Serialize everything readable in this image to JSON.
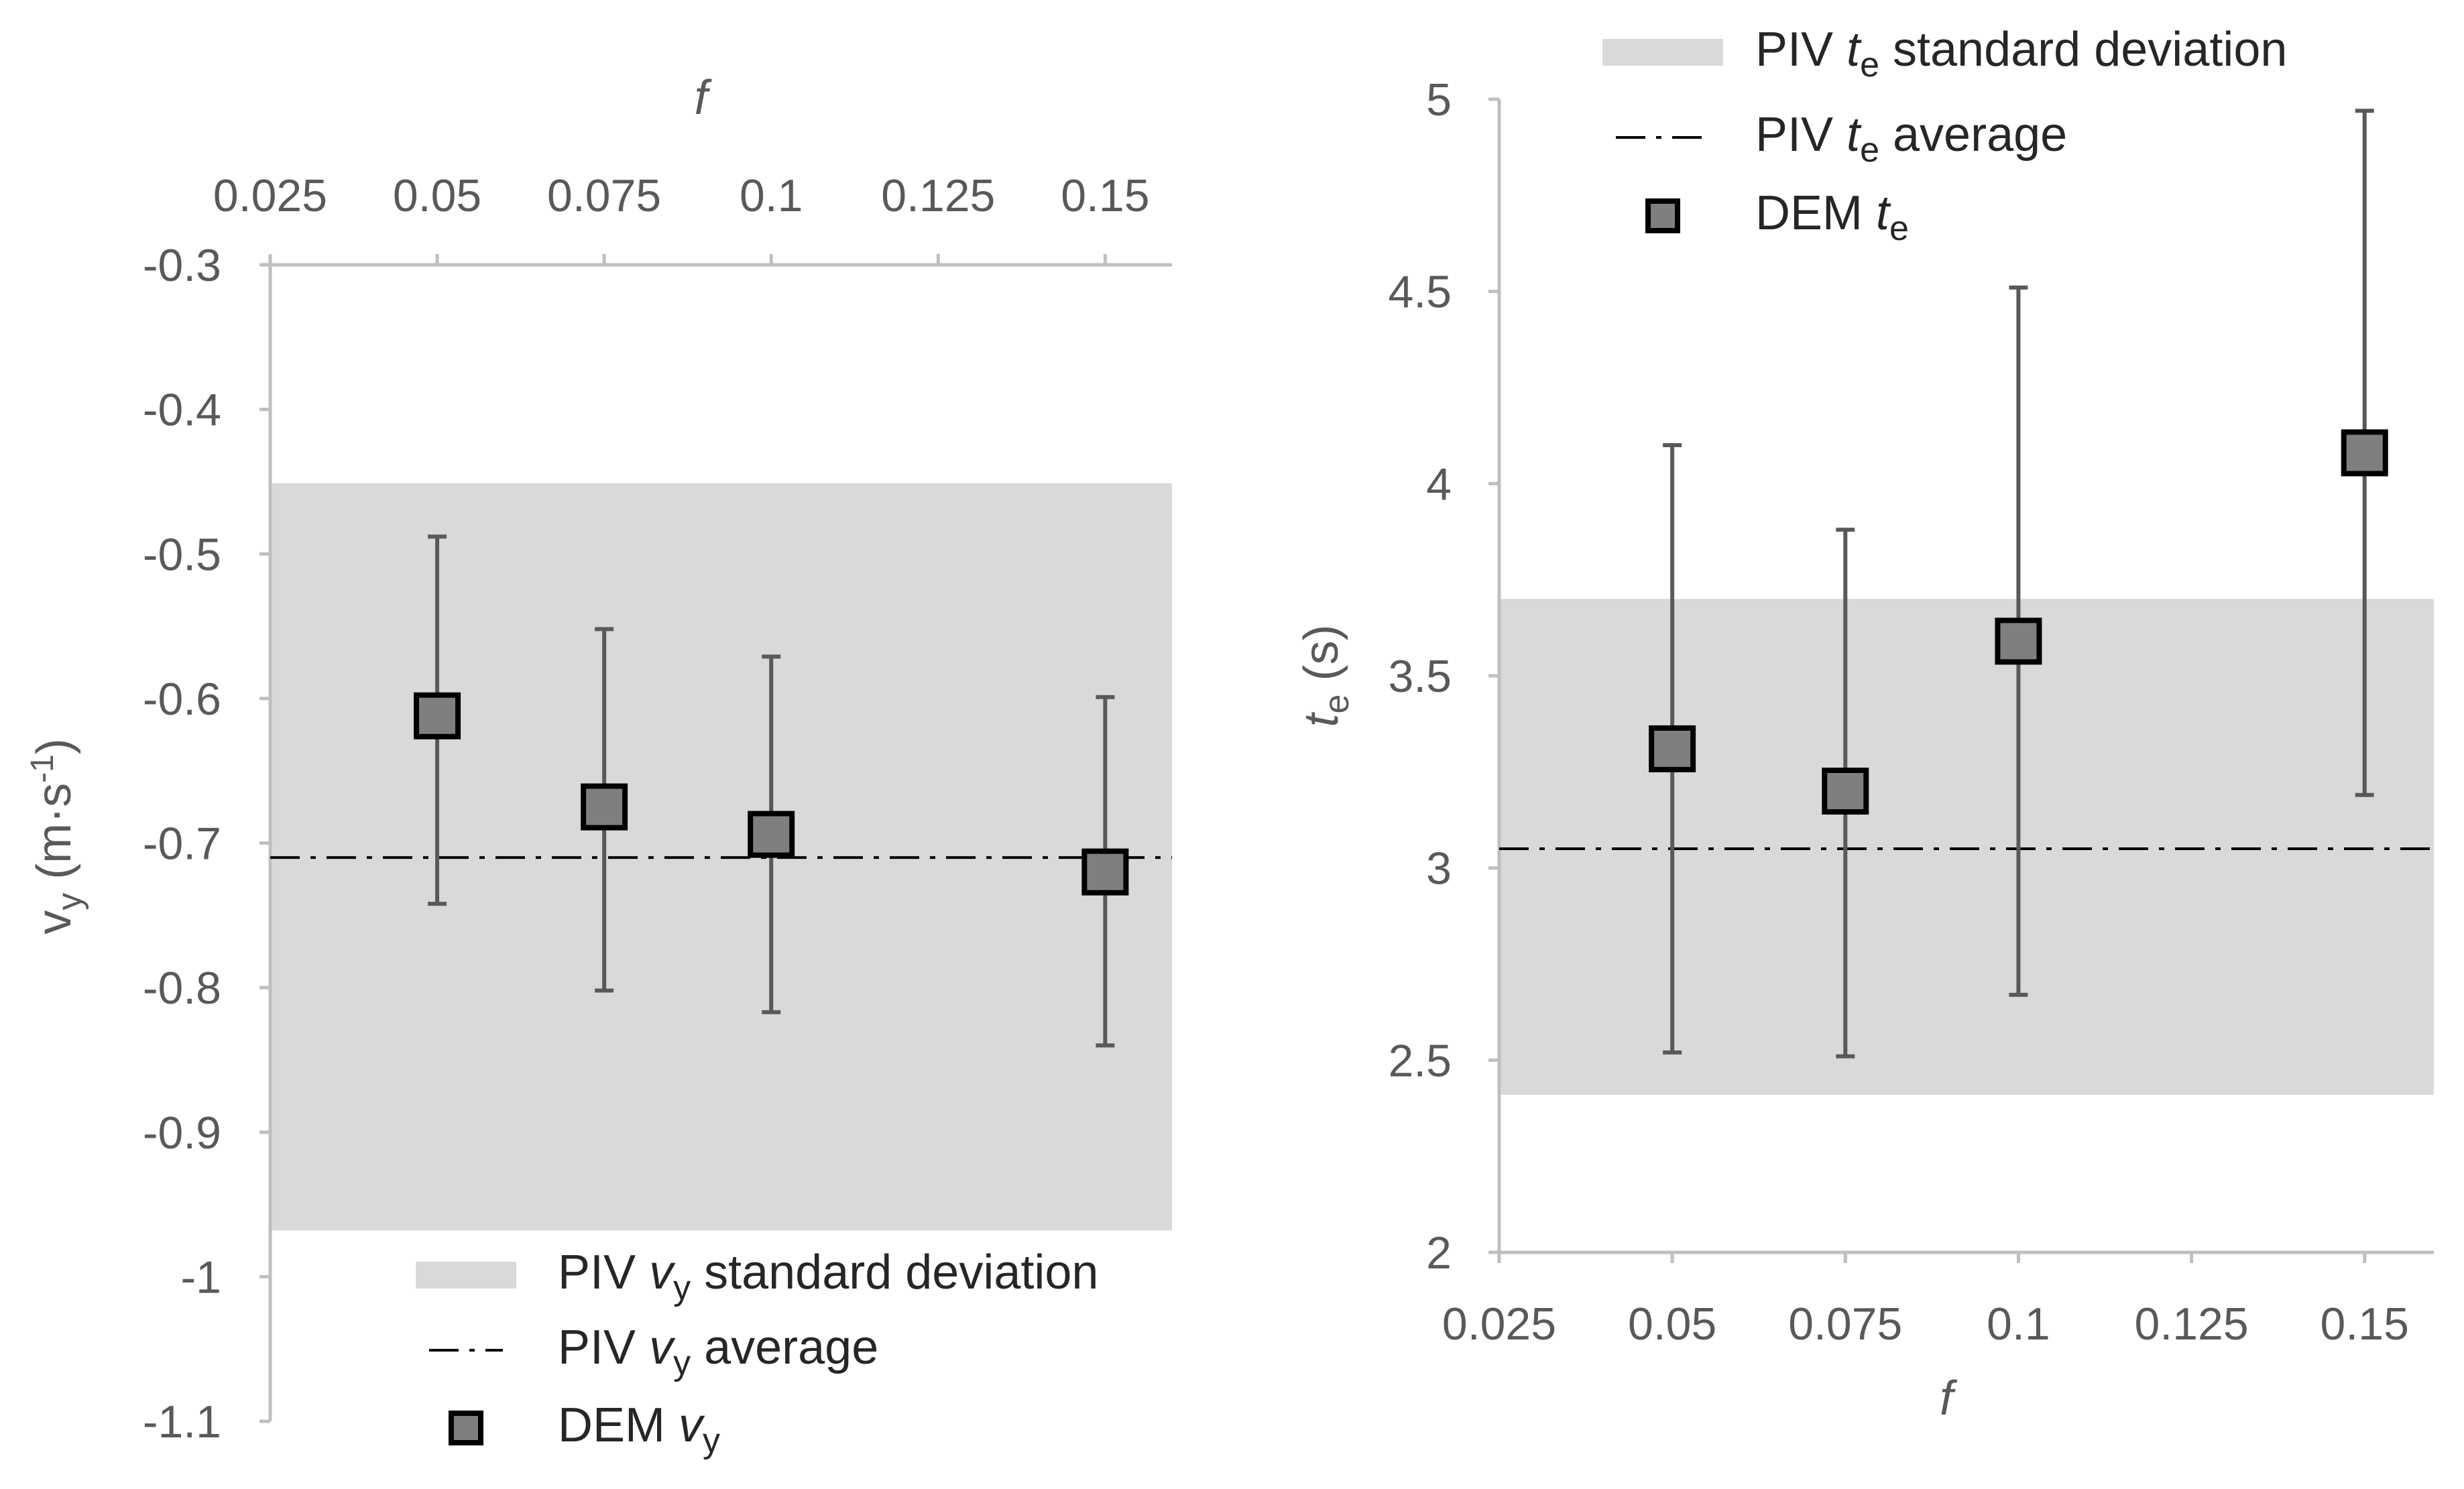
{
  "chart_data": [
    {
      "type": "scatter",
      "name": "vy",
      "xlabel": "f",
      "ylabel_main": "v",
      "ylabel_sub": "y",
      "ylabel_unit_a": " (m·s",
      "ylabel_unit_sup": "-1",
      "ylabel_unit_b": ")",
      "xlim": [
        0.025,
        0.16
      ],
      "ylim": [
        -1.1,
        -0.3
      ],
      "x_axis_position": "top",
      "x_ticks": [
        0.025,
        0.05,
        0.075,
        0.1,
        0.125,
        0.15
      ],
      "x_tick_labels": [
        "0.025",
        "0.05",
        "0.075",
        "0.1",
        "0.125",
        "0.15"
      ],
      "y_ticks": [
        -0.3,
        -0.4,
        -0.5,
        -0.6,
        -0.7,
        -0.8,
        -0.9,
        -1,
        -1.1
      ],
      "y_tick_labels": [
        "-0.3",
        "-0.4",
        "-0.5",
        "-0.6",
        "-0.7",
        "-0.8",
        "-0.9",
        "-1",
        "-1.1"
      ],
      "band": {
        "low": -0.968,
        "high": -0.451
      },
      "average": -0.71,
      "points": [
        {
          "x": 0.05,
          "y": -0.612,
          "low": -0.742,
          "high": -0.488
        },
        {
          "x": 0.075,
          "y": -0.675,
          "low": -0.802,
          "high": -0.552
        },
        {
          "x": 0.1,
          "y": -0.694,
          "low": -0.817,
          "high": -0.571
        },
        {
          "x": 0.15,
          "y": -0.72,
          "low": -0.84,
          "high": -0.599
        }
      ],
      "legend_position": "bottom",
      "legend": [
        {
          "kind": "band",
          "pre": "PIV ",
          "sym": "v",
          "sub": "y",
          "post": " standard deviation"
        },
        {
          "kind": "line",
          "pre": "PIV ",
          "sym": "v",
          "sub": "y",
          "post": " average"
        },
        {
          "kind": "marker",
          "pre": "DEM ",
          "sym": "v",
          "sub": "y",
          "post": ""
        }
      ]
    },
    {
      "type": "scatter",
      "name": "te",
      "xlabel": "f",
      "ylabel_main": "t",
      "ylabel_sub": "e",
      "ylabel_unit_a": " (s)",
      "ylabel_unit_sup": "",
      "ylabel_unit_b": "",
      "xlim": [
        0.025,
        0.16
      ],
      "ylim": [
        2,
        5
      ],
      "x_axis_position": "bottom",
      "x_ticks": [
        0.025,
        0.05,
        0.075,
        0.1,
        0.125,
        0.15
      ],
      "x_tick_labels": [
        "0.025",
        "0.05",
        "0.075",
        "0.1",
        "0.125",
        "0.15"
      ],
      "y_ticks": [
        2,
        2.5,
        3,
        3.5,
        4,
        4.5,
        5
      ],
      "y_tick_labels": [
        "2",
        "2.5",
        "3",
        "3.5",
        "4",
        "4.5",
        "5"
      ],
      "band": {
        "low": 2.41,
        "high": 3.7
      },
      "average": 3.05,
      "points": [
        {
          "x": 0.05,
          "y": 3.31,
          "low": 2.52,
          "high": 4.1
        },
        {
          "x": 0.075,
          "y": 3.2,
          "low": 2.51,
          "high": 3.88
        },
        {
          "x": 0.1,
          "y": 3.59,
          "low": 2.67,
          "high": 4.51
        },
        {
          "x": 0.15,
          "y": 4.08,
          "low": 3.19,
          "high": 4.97
        }
      ],
      "legend_position": "top",
      "legend": [
        {
          "kind": "band",
          "pre": "PIV ",
          "sym": "t",
          "sub": "e",
          "post": " standard deviation"
        },
        {
          "kind": "line",
          "pre": "PIV ",
          "sym": "t",
          "sub": "e",
          "post": " average"
        },
        {
          "kind": "marker",
          "pre": "DEM ",
          "sym": "t",
          "sub": "e",
          "post": ""
        }
      ]
    }
  ]
}
